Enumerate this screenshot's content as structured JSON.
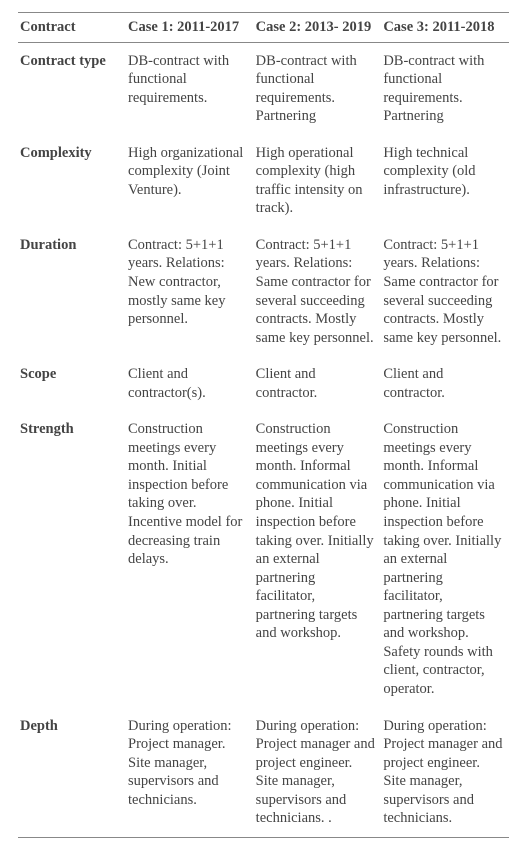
{
  "table": {
    "headers": [
      "Contract",
      "Case 1: 2011-2017",
      "Case 2: 2013- 2019",
      "Case 3: 2011-2018"
    ],
    "rows": [
      {
        "label": "Contract type",
        "case1": "DB-contract with functional requirements.",
        "case2": "DB-contract with functional requirements. Partnering",
        "case3": "DB-contract with functional requirements. Partnering"
      },
      {
        "label": "Complexity",
        "case1": "High organizational complexity (Joint Venture).",
        "case2": "High operational complexity (high traffic intensity on track).",
        "case3": "High technical complexity (old infrastructure)."
      },
      {
        "label": "Duration",
        "case1": "Contract: 5+1+1 years. Relations: New contractor, mostly same key personnel.",
        "case2": "Contract: 5+1+1 years. Relations: Same contractor for several succeeding contracts. Mostly same key personnel.",
        "case3": "Contract: 5+1+1 years. Relations: Same contractor for several succeeding contracts. Mostly same key personnel."
      },
      {
        "label": "Scope",
        "case1": "Client and contractor(s).",
        "case2": "Client and contractor.",
        "case3": "Client and contractor."
      },
      {
        "label": "Strength",
        "case1": "Construction meetings every month. Initial inspection before taking over. Incentive model for decreasing train delays.",
        "case2": "Construction meetings every month. Informal communication via phone. Initial inspection before taking over. Initially an external partnering facilitator, partnering targets and workshop.",
        "case3": "Construction meetings every month. Informal communication via phone. Initial inspection before taking over. Initially an external partnering facilitator, partnering targets and workshop. Safety rounds with client, contractor, operator."
      },
      {
        "label": "Depth",
        "case1": "During operation: Project manager. Site manager, supervisors and technicians.",
        "case2": "During operation: Project manager and project engineer. Site manager, supervisors and technicians. .",
        "case3": "During operation: Project manager and project engineer. Site manager, supervisors and technicians."
      }
    ]
  }
}
